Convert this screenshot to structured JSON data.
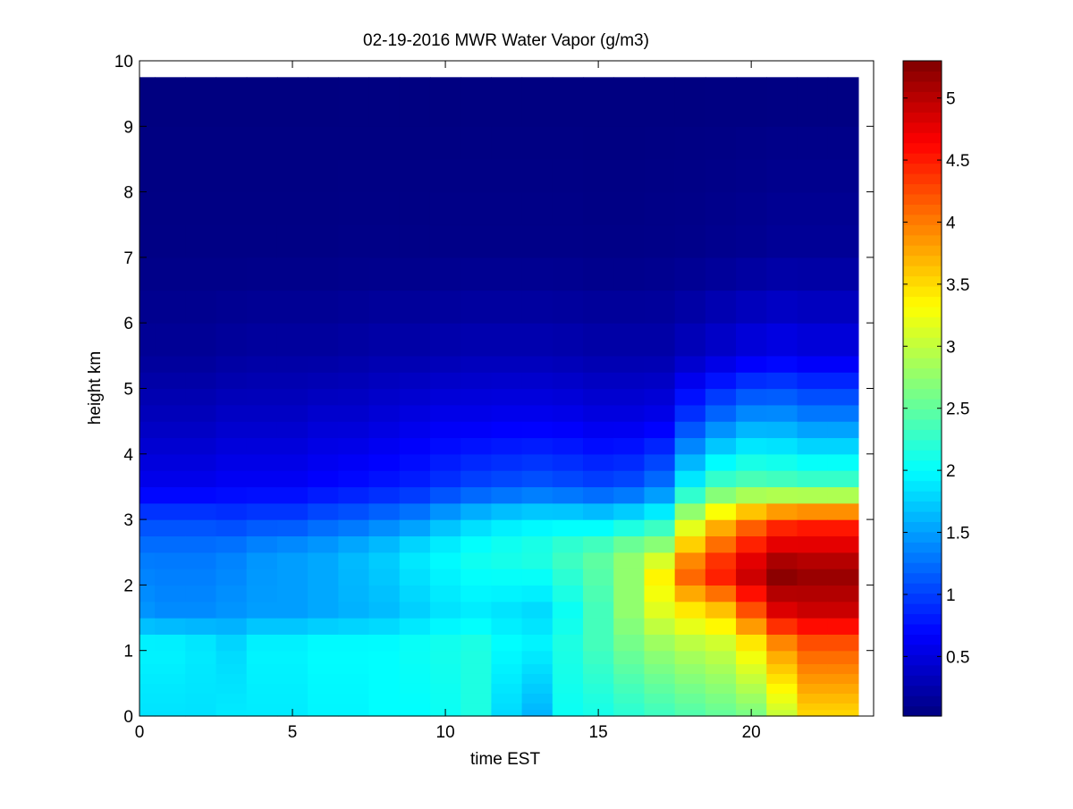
{
  "chart_data": {
    "type": "heatmap",
    "title": "02-19-2016 MWR Water Vapor (g/m3)",
    "xlabel": "time EST",
    "ylabel": "height km",
    "xlim": [
      0,
      24
    ],
    "ylim": [
      0,
      10
    ],
    "xticks": [
      0,
      5,
      10,
      15,
      20
    ],
    "yticks": [
      0,
      1,
      2,
      3,
      4,
      5,
      6,
      7,
      8,
      9,
      10
    ],
    "colorbar": {
      "colormap": "jet",
      "range": [
        0.02,
        5.3
      ],
      "ticks": [
        0.5,
        1,
        1.5,
        2,
        2.5,
        3,
        3.5,
        4,
        4.5,
        5
      ],
      "tick_labels": [
        "0.5",
        "1",
        "1.5",
        "2",
        "2.5",
        "3",
        "3.5",
        "4",
        "4.5",
        "5"
      ]
    },
    "data_extent": {
      "x": [
        0,
        23.5
      ],
      "y": [
        0,
        9.75
      ]
    },
    "time_hours": [
      0.5,
      1.5,
      2.5,
      3.5,
      4.5,
      5.5,
      6.5,
      7.5,
      8.5,
      9.5,
      10.5,
      11.5,
      12.5,
      13.5,
      14.5,
      15.5,
      16.5,
      17.5,
      18.5,
      19.5,
      20.5,
      21.5,
      22.5,
      23.5
    ],
    "height_km": [
      0,
      0.1,
      0.2,
      0.35,
      0.5,
      0.65,
      0.8,
      1.0,
      1.25,
      1.5,
      1.75,
      2.0,
      2.25,
      2.5,
      2.75,
      3.0,
      3.25,
      3.5,
      3.75,
      4.0,
      4.25,
      4.5,
      4.75,
      5.0,
      5.25,
      5.5,
      6.0,
      6.5,
      7.0,
      7.5,
      8.0,
      8.5,
      9.0,
      9.75
    ],
    "water_vapor_profiles": [
      {
        "time": 0.5,
        "values": [
          [
            0,
            1.85
          ],
          [
            1.1,
            1.95
          ],
          [
            1.6,
            1.45
          ],
          [
            2.5,
            1.3
          ],
          [
            3.0,
            1.05
          ],
          [
            3.5,
            0.6
          ],
          [
            4.5,
            0.35
          ],
          [
            5.5,
            0.15
          ],
          [
            7.0,
            0.05
          ],
          [
            9.75,
            0.02
          ]
        ]
      },
      {
        "time": 1.5,
        "values": [
          [
            0,
            1.85
          ],
          [
            1.1,
            1.95
          ],
          [
            1.6,
            1.4
          ],
          [
            2.5,
            1.3
          ],
          [
            3.0,
            1.05
          ],
          [
            3.5,
            0.6
          ],
          [
            4.5,
            0.35
          ],
          [
            5.5,
            0.15
          ],
          [
            7.0,
            0.05
          ],
          [
            9.75,
            0.02
          ]
        ]
      },
      {
        "time": 2.5,
        "values": [
          [
            0,
            1.85
          ],
          [
            1.1,
            1.9
          ],
          [
            1.6,
            1.4
          ],
          [
            2.5,
            1.3
          ],
          [
            3.0,
            1.05
          ],
          [
            3.5,
            0.6
          ],
          [
            4.5,
            0.35
          ],
          [
            5.5,
            0.15
          ],
          [
            7.0,
            0.05
          ],
          [
            9.75,
            0.02
          ]
        ]
      },
      {
        "time": 3.5,
        "values": [
          [
            0,
            1.9
          ],
          [
            1.1,
            1.8
          ],
          [
            1.6,
            1.45
          ],
          [
            2.5,
            1.35
          ],
          [
            3.0,
            1.0
          ],
          [
            3.5,
            0.65
          ],
          [
            4.5,
            0.4
          ],
          [
            5.5,
            0.18
          ],
          [
            7.0,
            0.05
          ],
          [
            9.75,
            0.02
          ]
        ]
      },
      {
        "time": 4.5,
        "values": [
          [
            0,
            1.9
          ],
          [
            1.1,
            1.95
          ],
          [
            1.6,
            1.5
          ],
          [
            2.5,
            1.45
          ],
          [
            3.0,
            1.05
          ],
          [
            3.5,
            0.65
          ],
          [
            4.5,
            0.4
          ],
          [
            5.5,
            0.2
          ],
          [
            7.0,
            0.05
          ],
          [
            9.75,
            0.02
          ]
        ]
      },
      {
        "time": 5.5,
        "values": [
          [
            0,
            1.9
          ],
          [
            1.1,
            1.95
          ],
          [
            1.6,
            1.5
          ],
          [
            2.5,
            1.5
          ],
          [
            3.0,
            1.05
          ],
          [
            3.5,
            0.65
          ],
          [
            4.5,
            0.4
          ],
          [
            5.5,
            0.2
          ],
          [
            7.0,
            0.05
          ],
          [
            9.75,
            0.02
          ]
        ]
      },
      {
        "time": 6.5,
        "values": [
          [
            0,
            1.95
          ],
          [
            1.1,
            2.0
          ],
          [
            1.6,
            1.55
          ],
          [
            2.5,
            1.55
          ],
          [
            3.0,
            1.15
          ],
          [
            3.5,
            0.7
          ],
          [
            4.5,
            0.45
          ],
          [
            5.5,
            0.2
          ],
          [
            7.0,
            0.05
          ],
          [
            9.75,
            0.02
          ]
        ]
      },
      {
        "time": 7.5,
        "values": [
          [
            0,
            1.95
          ],
          [
            1.1,
            2.0
          ],
          [
            1.6,
            1.6
          ],
          [
            2.5,
            1.65
          ],
          [
            3.0,
            1.2
          ],
          [
            3.5,
            0.75
          ],
          [
            4.5,
            0.45
          ],
          [
            5.5,
            0.22
          ],
          [
            7.0,
            0.06
          ],
          [
            9.75,
            0.02
          ]
        ]
      },
      {
        "time": 8.5,
        "values": [
          [
            0,
            2.0
          ],
          [
            1.1,
            2.0
          ],
          [
            1.6,
            1.65
          ],
          [
            2.5,
            1.75
          ],
          [
            3.0,
            1.3
          ],
          [
            3.5,
            0.8
          ],
          [
            4.5,
            0.5
          ],
          [
            5.5,
            0.25
          ],
          [
            7.0,
            0.06
          ],
          [
            9.75,
            0.02
          ]
        ]
      },
      {
        "time": 9.5,
        "values": [
          [
            0,
            2.0
          ],
          [
            1.1,
            2.05
          ],
          [
            1.6,
            1.75
          ],
          [
            2.5,
            1.9
          ],
          [
            3.0,
            1.4
          ],
          [
            3.5,
            0.85
          ],
          [
            4.5,
            0.55
          ],
          [
            5.5,
            0.25
          ],
          [
            7.0,
            0.06
          ],
          [
            9.75,
            0.02
          ]
        ]
      },
      {
        "time": 10.5,
        "values": [
          [
            0,
            2.05
          ],
          [
            1.1,
            2.1
          ],
          [
            1.6,
            1.85
          ],
          [
            2.5,
            2.0
          ],
          [
            3.0,
            1.6
          ],
          [
            3.5,
            0.95
          ],
          [
            4.5,
            0.6
          ],
          [
            5.5,
            0.28
          ],
          [
            7.0,
            0.07
          ],
          [
            9.75,
            0.02
          ]
        ]
      },
      {
        "time": 11.5,
        "values": [
          [
            0,
            2.15
          ],
          [
            1.1,
            2.15
          ],
          [
            1.6,
            1.9
          ],
          [
            2.5,
            2.1
          ],
          [
            3.0,
            1.75
          ],
          [
            3.5,
            1.05
          ],
          [
            4.5,
            0.6
          ],
          [
            5.5,
            0.3
          ],
          [
            7.0,
            0.07
          ],
          [
            9.75,
            0.02
          ]
        ]
      },
      {
        "time": 12.5,
        "values": [
          [
            0,
            1.8
          ],
          [
            1.1,
            2.0
          ],
          [
            1.6,
            1.85
          ],
          [
            2.5,
            2.15
          ],
          [
            3.0,
            1.85
          ],
          [
            3.5,
            1.1
          ],
          [
            4.5,
            0.62
          ],
          [
            5.5,
            0.3
          ],
          [
            7.0,
            0.07
          ],
          [
            9.75,
            0.02
          ]
        ]
      },
      {
        "time": 13.5,
        "values": [
          [
            0,
            1.6
          ],
          [
            1.1,
            1.95
          ],
          [
            1.6,
            1.8
          ],
          [
            2.5,
            2.2
          ],
          [
            3.0,
            1.9
          ],
          [
            3.5,
            1.15
          ],
          [
            4.5,
            0.62
          ],
          [
            5.5,
            0.3
          ],
          [
            7.0,
            0.07
          ],
          [
            9.75,
            0.02
          ]
        ]
      },
      {
        "time": 14.5,
        "values": [
          [
            0,
            2.05
          ],
          [
            1.1,
            2.15
          ],
          [
            1.6,
            2.05
          ],
          [
            2.5,
            2.35
          ],
          [
            3.0,
            1.9
          ],
          [
            3.5,
            1.1
          ],
          [
            4.5,
            0.6
          ],
          [
            5.5,
            0.28
          ],
          [
            7.0,
            0.07
          ],
          [
            9.75,
            0.02
          ]
        ]
      },
      {
        "time": 15.5,
        "values": [
          [
            0,
            2.1
          ],
          [
            1.1,
            2.35
          ],
          [
            1.6,
            2.35
          ],
          [
            2.5,
            2.5
          ],
          [
            3.0,
            1.85
          ],
          [
            3.5,
            1.05
          ],
          [
            4.5,
            0.55
          ],
          [
            5.5,
            0.25
          ],
          [
            7.0,
            0.06
          ],
          [
            9.75,
            0.02
          ]
        ]
      },
      {
        "time": 16.5,
        "values": [
          [
            0,
            2.2
          ],
          [
            1.1,
            2.6
          ],
          [
            1.6,
            2.75
          ],
          [
            2.5,
            2.75
          ],
          [
            3.0,
            1.95
          ],
          [
            3.5,
            1.1
          ],
          [
            4.5,
            0.55
          ],
          [
            5.5,
            0.25
          ],
          [
            7.0,
            0.06
          ],
          [
            9.75,
            0.02
          ]
        ]
      },
      {
        "time": 17.5,
        "values": [
          [
            0,
            2.3
          ],
          [
            1.1,
            2.8
          ],
          [
            1.6,
            3.15
          ],
          [
            2.2,
            3.4
          ],
          [
            3.0,
            2.1
          ],
          [
            3.5,
            1.3
          ],
          [
            4.5,
            0.6
          ],
          [
            5.5,
            0.25
          ],
          [
            7.0,
            0.07
          ],
          [
            9.75,
            0.02
          ]
        ]
      },
      {
        "time": 18.5,
        "values": [
          [
            0,
            2.4
          ],
          [
            1.1,
            2.95
          ],
          [
            1.6,
            3.4
          ],
          [
            2.2,
            4.2
          ],
          [
            3.0,
            3.0
          ],
          [
            3.5,
            2.0
          ],
          [
            4.5,
            1.0
          ],
          [
            5.5,
            0.35
          ],
          [
            7.0,
            0.08
          ],
          [
            9.75,
            0.02
          ]
        ]
      },
      {
        "time": 19.5,
        "values": [
          [
            0,
            2.5
          ],
          [
            1.1,
            3.05
          ],
          [
            1.6,
            3.6
          ],
          [
            2.2,
            4.6
          ],
          [
            3.0,
            3.6
          ],
          [
            3.5,
            2.4
          ],
          [
            4.5,
            1.3
          ],
          [
            5.5,
            0.45
          ],
          [
            7.0,
            0.1
          ],
          [
            9.75,
            0.02
          ]
        ]
      },
      {
        "time": 20.5,
        "values": [
          [
            0,
            2.6
          ],
          [
            1.1,
            3.4
          ],
          [
            1.6,
            4.2
          ],
          [
            2.2,
            5.0
          ],
          [
            3.0,
            4.0
          ],
          [
            3.5,
            2.5
          ],
          [
            4.5,
            1.5
          ],
          [
            5.5,
            0.55
          ],
          [
            7.0,
            0.12
          ],
          [
            9.75,
            0.02
          ]
        ]
      },
      {
        "time": 21.5,
        "values": [
          [
            0,
            3.0
          ],
          [
            1.1,
            3.9
          ],
          [
            1.6,
            4.8
          ],
          [
            2.2,
            5.3
          ],
          [
            3.0,
            4.3
          ],
          [
            3.5,
            2.45
          ],
          [
            4.5,
            1.5
          ],
          [
            5.5,
            0.6
          ],
          [
            7.0,
            0.15
          ],
          [
            9.75,
            0.02
          ]
        ]
      },
      {
        "time": 22.5,
        "values": [
          [
            0,
            3.5
          ],
          [
            1.1,
            4.2
          ],
          [
            1.6,
            4.9
          ],
          [
            2.2,
            5.2
          ],
          [
            3.0,
            4.4
          ],
          [
            3.5,
            2.4
          ],
          [
            4.5,
            1.4
          ],
          [
            5.5,
            0.55
          ],
          [
            7.0,
            0.15
          ],
          [
            9.75,
            0.02
          ]
        ]
      },
      {
        "time": 23.5,
        "values": [
          [
            0,
            3.5
          ],
          [
            1.1,
            4.2
          ],
          [
            1.6,
            4.9
          ],
          [
            2.2,
            5.2
          ],
          [
            3.0,
            4.4
          ],
          [
            3.5,
            2.4
          ],
          [
            4.5,
            1.4
          ],
          [
            5.5,
            0.55
          ],
          [
            7.0,
            0.15
          ],
          [
            9.75,
            0.02
          ]
        ]
      }
    ]
  }
}
